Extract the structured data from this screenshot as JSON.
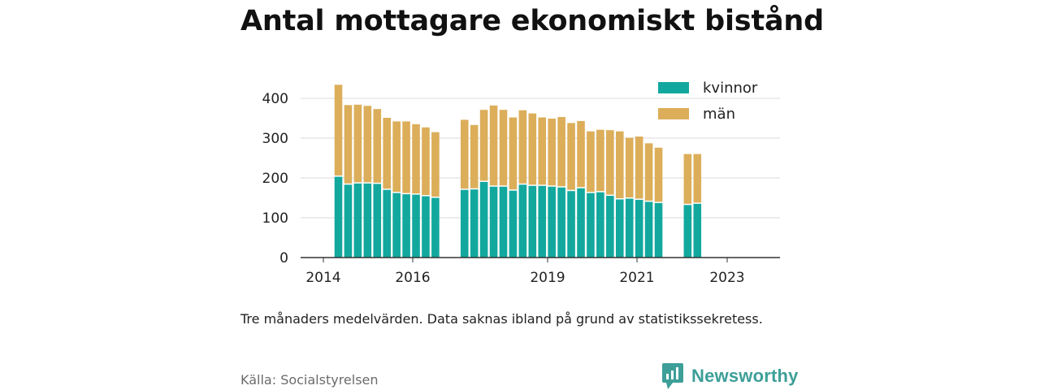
{
  "title": "Antal mottagare ekonomiskt bistånd",
  "note": "Tre månaders medelvärden. Data saknas ibland på grund av statistikssekretess.",
  "source": "Källa: Socialstyrelsen",
  "brand": {
    "name": "Newsworthy",
    "icon": "newsworthy-logo-icon",
    "color": "#3d9f98"
  },
  "legend": [
    {
      "label": "kvinnor",
      "color": "#13a89e"
    },
    {
      "label": "män",
      "color": "#dcae5a"
    }
  ],
  "chart_data": {
    "type": "bar",
    "stacked": true,
    "x_start": "2014-07",
    "x_tick_labels": [
      "2014",
      "2016",
      "2019",
      "2021",
      "2023"
    ],
    "y_tick_labels": [
      "0",
      "100",
      "200",
      "300",
      "400"
    ],
    "ylim": [
      0,
      450
    ],
    "grid": true,
    "legend_position": "top-right",
    "series": [
      {
        "name": "kvinnor",
        "color": "#13a89e",
        "values": [
          203,
          183,
          186,
          186,
          185,
          170,
          162,
          159,
          158,
          154,
          150,
          null,
          null,
          170,
          171,
          190,
          178,
          178,
          168,
          183,
          180,
          180,
          178,
          176,
          167,
          174,
          162,
          164,
          155,
          146,
          148,
          145,
          140,
          137,
          null,
          null,
          132,
          135
        ]
      },
      {
        "name": "män",
        "color": "#dcae5a",
        "values": [
          231,
          200,
          198,
          195,
          188,
          181,
          180,
          183,
          177,
          173,
          165,
          null,
          null,
          176,
          162,
          181,
          204,
          193,
          184,
          187,
          182,
          172,
          171,
          177,
          171,
          169,
          155,
          157,
          165,
          171,
          153,
          159,
          147,
          139,
          null,
          null,
          128,
          125
        ]
      }
    ]
  }
}
